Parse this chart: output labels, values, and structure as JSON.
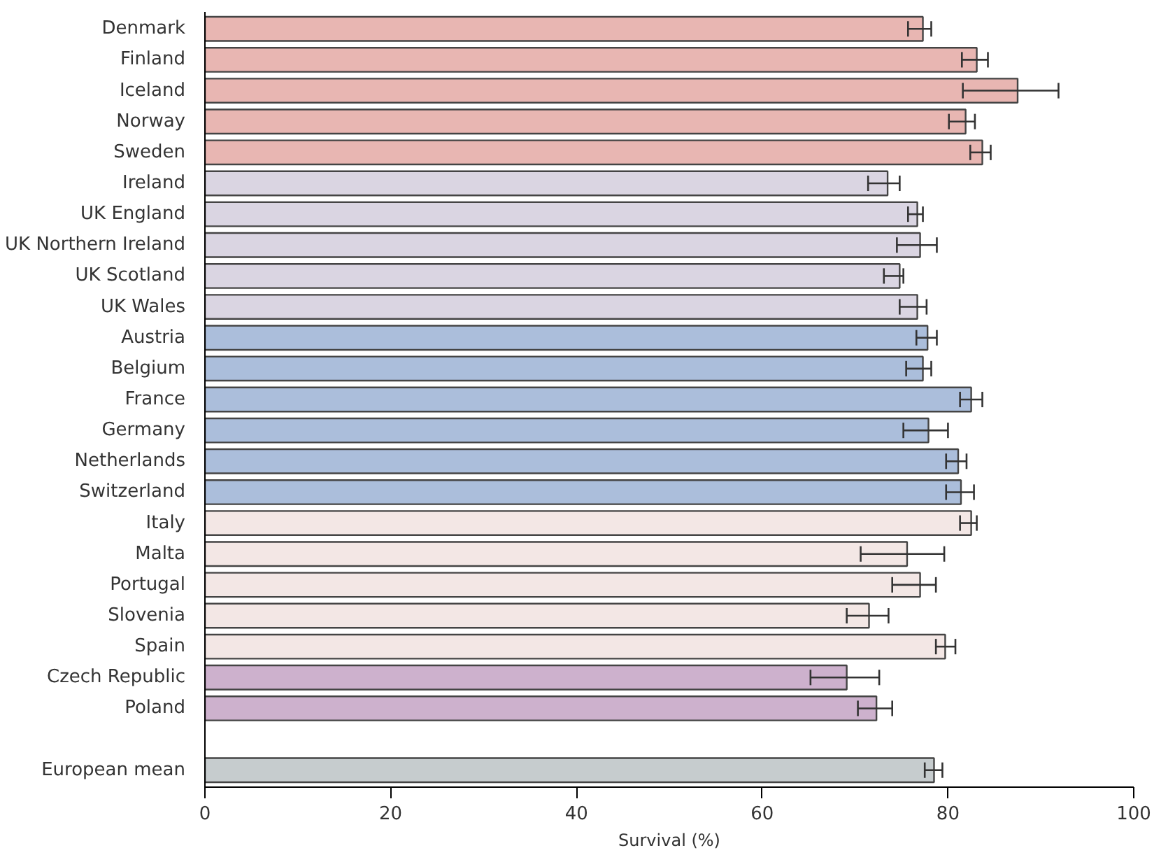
{
  "chart_data": {
    "type": "bar",
    "orientation": "horizontal",
    "xlabel": "Survival (%)",
    "categories": [
      "Denmark",
      "Finland",
      "Iceland",
      "Norway",
      "Sweden",
      "Ireland",
      "UK England",
      "UK Northern Ireland",
      "UK Scotland",
      "UK Wales",
      "Austria",
      "Belgium",
      "France",
      "Germany",
      "Netherlands",
      "Switzerland",
      "Italy",
      "Malta",
      "Portugal",
      "Slovenia",
      "Spain",
      "Czech Republic",
      "Poland",
      null,
      "European mean"
    ],
    "values": [
      77.3,
      83.1,
      87.5,
      81.9,
      83.7,
      73.5,
      76.7,
      77.0,
      74.8,
      76.7,
      77.8,
      77.3,
      82.5,
      77.9,
      81.1,
      81.4,
      82.5,
      75.6,
      77.0,
      71.5,
      79.7,
      69.1,
      72.3,
      null,
      78.5
    ],
    "errors": [
      [
        75.7,
        78.2
      ],
      [
        81.5,
        84.3
      ],
      [
        81.6,
        91.9
      ],
      [
        80.1,
        82.9
      ],
      [
        82.4,
        84.6
      ],
      [
        71.4,
        74.8
      ],
      [
        75.7,
        77.3
      ],
      [
        74.5,
        78.8
      ],
      [
        73.1,
        75.2
      ],
      [
        74.8,
        77.7
      ],
      [
        76.6,
        78.8
      ],
      [
        75.5,
        78.2
      ],
      [
        81.3,
        83.7
      ],
      [
        75.2,
        80.0
      ],
      [
        79.8,
        82.0
      ],
      [
        79.8,
        82.8
      ],
      [
        81.3,
        83.1
      ],
      [
        70.6,
        79.6
      ],
      [
        74.0,
        78.7
      ],
      [
        69.1,
        73.6
      ],
      [
        78.7,
        80.8
      ],
      [
        65.2,
        72.6
      ],
      [
        70.3,
        74.0
      ],
      null,
      [
        77.5,
        79.4
      ]
    ],
    "colors": [
      "#e8b6b2",
      "#e8b6b2",
      "#e8b6b2",
      "#e8b6b2",
      "#e8b6b2",
      "#dad5e2",
      "#dad5e2",
      "#dad5e2",
      "#dad5e2",
      "#dad5e2",
      "#abbedb",
      "#abbedb",
      "#abbedb",
      "#abbedb",
      "#abbedb",
      "#abbedb",
      "#f3e7e5",
      "#f3e7e5",
      "#f3e7e5",
      "#f3e7e5",
      "#f3e7e5",
      "#cdb1cd",
      "#cdb1cd",
      "#ffffff",
      "#c6ccce"
    ],
    "xlim": [
      0,
      100
    ],
    "xticks": [
      0,
      20,
      40,
      60,
      80,
      100
    ],
    "grid": false
  }
}
